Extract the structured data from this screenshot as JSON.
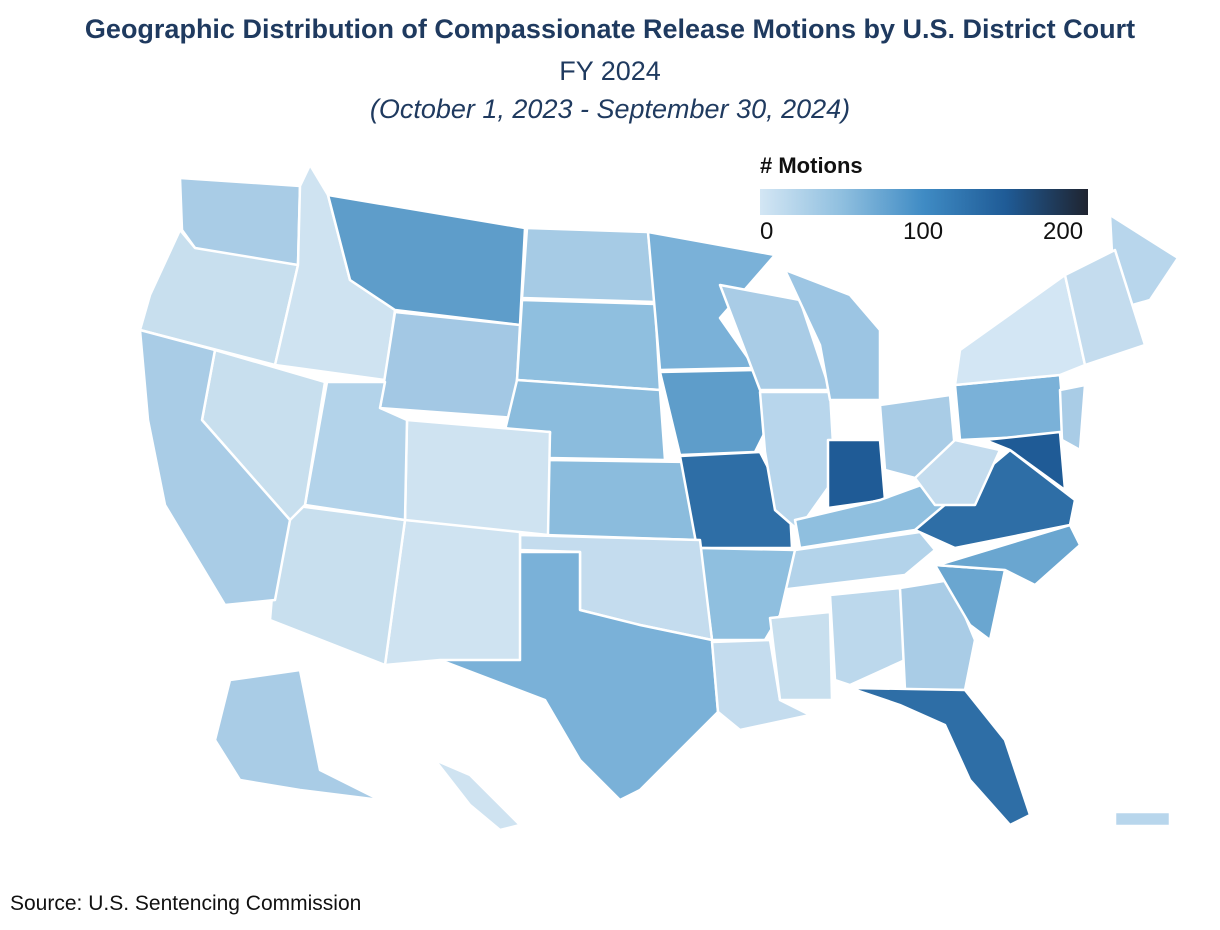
{
  "title": "Geographic Distribution of Compassionate Release Motions by U.S. District Court",
  "subtitle": "FY 2024",
  "date_range": "(October 1, 2023 - September 30, 2024)",
  "legend": {
    "title": "# Motions",
    "ticks": [
      "0",
      "100",
      "200"
    ],
    "min": 0,
    "max": 215,
    "colors": [
      "#d3e6f4",
      "#8fbfdf",
      "#3f8bc4",
      "#1f5b96",
      "#1f2430"
    ]
  },
  "source": "Source: U.S. Sentencing Commission",
  "regions": {
    "WA": "#a9cce6",
    "OR": "#c8dfee",
    "ID": "#cfe3f1",
    "MT": "#5e9dca",
    "WY": "#a3c8e4",
    "ND": "#a6cbe5",
    "SD": "#8fbfdf",
    "NE": "#8bbcdd",
    "KS": "#8bbcdd",
    "MN": "#7ab1d8",
    "IA": "#5e9dca",
    "MO": "#2e6ea6",
    "WI": "#a9cce6",
    "IL": "#b8d6ec",
    "MI": "#9cc5e3",
    "IN": "#1f5b96",
    "OH": "#a9cce6",
    "KY": "#8fbfdf",
    "TN": "#b3d3ea",
    "AR": "#8fbfdf",
    "OK": "#c4dcee",
    "TX": "#7ab1d8",
    "NM": "#cfe3f1",
    "AZ": "#c8dfee",
    "CO": "#cfe3f1",
    "UT": "#b3d3ea",
    "NV": "#c8dfee",
    "CA": "#a9cce6",
    "LA": "#c4dcee",
    "MS": "#c8dfee",
    "AL": "#bcd8ec",
    "GA": "#a9cce6",
    "FL": "#2e6ea6",
    "SC": "#6aa6d0",
    "NC": "#6aa6d0",
    "VA": "#2e6ea6",
    "WV": "#c4dcee",
    "PA": "#7ab1d8",
    "NY": "#d3e6f4",
    "ME": "#b8d6ec",
    "NE_ST": "#c4dcee",
    "MD": "#1f5b96",
    "NJ": "#a9cce6",
    "AK": "#a9cce6",
    "HI": "#cfe3f1",
    "PR": "#b8d6ec"
  }
}
